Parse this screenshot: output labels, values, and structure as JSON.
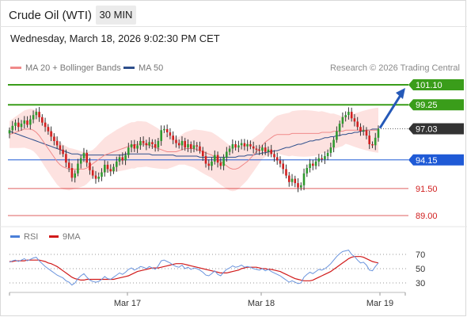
{
  "header": {
    "title": "Crude Oil (WTI)",
    "interval": "30 MIN",
    "datetime": "Wednesday, March 18, 2026 9:02:30 PM CET"
  },
  "legend": {
    "ma20": {
      "label": "MA 20 + Bollinger Bands",
      "color": "#f08a8a"
    },
    "ma50": {
      "label": "MA 50",
      "color": "#2e4f8c"
    }
  },
  "credit": "Research © 2026 Trading Central",
  "rsi_legend": {
    "rsi": {
      "label": "RSI",
      "color": "#4a7fd8"
    },
    "ma9": {
      "label": "9MA",
      "color": "#d11a1a"
    }
  },
  "chart_data": [
    {
      "type": "line",
      "subtype": "candlestick",
      "x_ticks": [
        "Mar 17",
        "Mar 18",
        "Mar 19"
      ],
      "ylim": [
        87.5,
        102.5
      ],
      "levels": [
        {
          "value": 101.1,
          "label": "101.10",
          "kind": "resistance",
          "color": "#3a9d1a"
        },
        {
          "value": 99.25,
          "label": "99.25",
          "kind": "resistance",
          "color": "#3a9d1a"
        },
        {
          "value": 97.03,
          "label": "97.03",
          "kind": "last",
          "color": "#333333"
        },
        {
          "value": 94.15,
          "label": "94.15",
          "kind": "pivot",
          "color": "#1f5ad6"
        },
        {
          "value": 91.5,
          "label": "91.50",
          "kind": "support",
          "color": "#d12020"
        },
        {
          "value": 89.0,
          "label": "89.00",
          "kind": "support",
          "color": "#d12020"
        }
      ],
      "target_arrow": {
        "from": 97.03,
        "to": 101.1
      },
      "closes": [
        96.9,
        97.3,
        97.6,
        97.2,
        97.5,
        97.8,
        97.4,
        97.9,
        98.3,
        98.6,
        98.1,
        97.6,
        97.2,
        96.8,
        96.3,
        95.9,
        95.5,
        95.1,
        94.7,
        93.9,
        93.4,
        92.5,
        92.9,
        93.8,
        94.3,
        94.8,
        93.9,
        93.2,
        92.7,
        92.4,
        92.6,
        93.0,
        93.7,
        93.3,
        93.1,
        93.5,
        94.0,
        94.4,
        94.1,
        94.6,
        95.3,
        95.6,
        95.2,
        95.5,
        95.9,
        95.7,
        95.5,
        95.8,
        95.6,
        95.3,
        95.9,
        96.9,
        97.0,
        96.7,
        96.4,
        96.0,
        95.7,
        95.5,
        95.9,
        95.3,
        95.6,
        95.2,
        95.5,
        95.4,
        95.0,
        94.5,
        93.8,
        93.6,
        94.0,
        94.6,
        93.9,
        93.6,
        94.4,
        94.9,
        95.2,
        95.6,
        95.3,
        95.5,
        95.7,
        95.4,
        95.6,
        95.4,
        95.2,
        95.1,
        95.0,
        95.3,
        94.9,
        95.1,
        94.7,
        94.4,
        94.1,
        93.8,
        93.3,
        92.7,
        92.1,
        92.4,
        92.0,
        91.6,
        91.8,
        92.9,
        93.4,
        93.8,
        93.6,
        94.0,
        94.3,
        94.2,
        94.5,
        94.8,
        95.3,
        96.0,
        96.8,
        97.5,
        98.1,
        98.3,
        98.6,
        98.0,
        97.7,
        97.2,
        96.8,
        96.9,
        96.4,
        95.6,
        95.5,
        96.2,
        97.03
      ],
      "ma20": [
        96.5,
        96.6,
        96.7,
        96.8,
        96.9,
        97.0,
        97.0,
        97.0,
        96.9,
        96.7,
        96.4,
        96.0,
        95.6,
        95.2,
        94.8,
        94.4,
        94.0,
        93.7,
        93.5,
        93.4,
        93.3,
        93.3,
        93.3,
        93.3,
        93.3,
        93.3,
        93.4,
        93.6,
        93.8,
        94.0,
        94.2,
        94.4,
        94.6,
        94.7,
        94.8,
        94.9,
        95.0,
        95.1,
        95.2,
        95.3,
        95.4,
        95.5,
        95.5,
        95.6,
        95.6,
        95.6,
        95.6,
        95.5,
        95.4,
        95.3,
        95.2,
        95.1,
        95.0,
        94.9,
        94.9,
        94.9,
        94.9,
        95.0,
        95.1,
        95.2,
        95.2,
        95.2,
        95.2,
        95.1,
        95.0,
        94.9,
        94.8,
        94.7,
        94.6,
        94.4,
        94.2,
        94.0,
        93.8,
        93.6,
        93.4,
        93.3,
        93.3,
        93.4,
        93.6,
        93.8,
        94.0,
        94.3,
        94.6,
        94.9,
        95.2,
        95.5,
        95.8,
        96.0,
        96.2,
        96.4,
        96.5,
        96.5,
        96.5,
        96.5,
        96.5,
        96.6,
        96.6,
        96.6,
        96.6,
        96.6,
        96.6,
        96.6,
        96.6,
        96.6,
        96.6,
        96.7,
        96.7,
        96.7,
        96.7,
        96.8,
        96.8,
        96.8,
        96.8,
        96.9,
        96.9,
        96.9,
        96.9,
        96.9,
        96.9,
        96.9,
        96.9,
        96.9,
        96.9,
        96.9,
        96.9
      ],
      "ma50": [
        96.8,
        96.7,
        96.6,
        96.5,
        96.4,
        96.3,
        96.2,
        96.1,
        96.0,
        95.9,
        95.8,
        95.7,
        95.6,
        95.5,
        95.4,
        95.3,
        95.2,
        95.1,
        95.0,
        94.9,
        94.8,
        94.7,
        94.7,
        94.7,
        94.6,
        94.6,
        94.6,
        94.6,
        94.6,
        94.6,
        94.6,
        94.6,
        94.6,
        94.6,
        94.6,
        94.6,
        94.6,
        94.6,
        94.6,
        94.7,
        94.7,
        94.7,
        94.7,
        94.7,
        94.7,
        94.7,
        94.7,
        94.7,
        94.6,
        94.6,
        94.6,
        94.6,
        94.6,
        94.6,
        94.6,
        94.6,
        94.5,
        94.5,
        94.5,
        94.5,
        94.5,
        94.5,
        94.5,
        94.5,
        94.4,
        94.4,
        94.4,
        94.4,
        94.4,
        94.4,
        94.4,
        94.4,
        94.4,
        94.4,
        94.4,
        94.4,
        94.4,
        94.5,
        94.5,
        94.5,
        94.6,
        94.6,
        94.6,
        94.7,
        94.7,
        94.8,
        94.8,
        94.9,
        94.9,
        95.0,
        95.0,
        95.1,
        95.2,
        95.3,
        95.3,
        95.4,
        95.5,
        95.6,
        95.6,
        95.7,
        95.8,
        95.9,
        95.9,
        96.0,
        96.0,
        96.1,
        96.2,
        96.2,
        96.3,
        96.3,
        96.4,
        96.4,
        96.5,
        96.5,
        96.6,
        96.6,
        96.7,
        96.7,
        96.8,
        96.8,
        96.9,
        96.9,
        97.0,
        97.0,
        97.0
      ]
    },
    {
      "type": "line",
      "title": "RSI",
      "ylim": [
        20,
        80
      ],
      "gridlines": [
        70,
        50,
        30
      ],
      "y_ticks": [
        "70",
        "50",
        "30"
      ],
      "rsi": [
        59,
        61,
        62,
        60,
        62,
        64,
        61,
        63,
        65,
        66,
        61,
        57,
        53,
        50,
        47,
        44,
        41,
        39,
        37,
        33,
        31,
        27,
        30,
        36,
        40,
        43,
        38,
        34,
        32,
        31,
        32,
        35,
        39,
        36,
        35,
        38,
        41,
        44,
        42,
        45,
        49,
        51,
        48,
        50,
        53,
        52,
        50,
        53,
        51,
        49,
        54,
        61,
        62,
        60,
        58,
        55,
        53,
        52,
        55,
        50,
        52,
        49,
        51,
        50,
        48,
        45,
        41,
        40,
        43,
        47,
        42,
        40,
        45,
        49,
        51,
        54,
        52,
        53,
        55,
        52,
        53,
        52,
        50,
        49,
        48,
        50,
        47,
        49,
        46,
        44,
        42,
        40,
        37,
        34,
        31,
        33,
        31,
        29,
        30,
        38,
        42,
        45,
        43,
        46,
        49,
        48,
        50,
        53,
        57,
        62,
        67,
        71,
        74,
        75,
        76,
        70,
        67,
        62,
        58,
        59,
        55,
        48,
        47,
        53,
        58
      ],
      "ma9": [
        60,
        60,
        61,
        61,
        61,
        61,
        62,
        62,
        62,
        62,
        62,
        61,
        60,
        58,
        57,
        55,
        53,
        50,
        47,
        44,
        41,
        38,
        36,
        35,
        34,
        34,
        35,
        35,
        35,
        35,
        35,
        35,
        35,
        35,
        35,
        35,
        36,
        37,
        38,
        39,
        40,
        42,
        44,
        46,
        47,
        48,
        49,
        50,
        51,
        51,
        51,
        52,
        53,
        54,
        55,
        56,
        57,
        57,
        57,
        56,
        55,
        54,
        53,
        52,
        51,
        50,
        49,
        48,
        47,
        46,
        45,
        44,
        44,
        44,
        45,
        46,
        47,
        48,
        50,
        51,
        52,
        52,
        52,
        52,
        51,
        50,
        50,
        49,
        49,
        48,
        47,
        46,
        44,
        42,
        40,
        38,
        36,
        35,
        34,
        33,
        33,
        33,
        34,
        36,
        38,
        40,
        42,
        44,
        46,
        49,
        52,
        55,
        58,
        61,
        64,
        66,
        67,
        67,
        67,
        66,
        64,
        62,
        60,
        59,
        58
      ]
    }
  ]
}
